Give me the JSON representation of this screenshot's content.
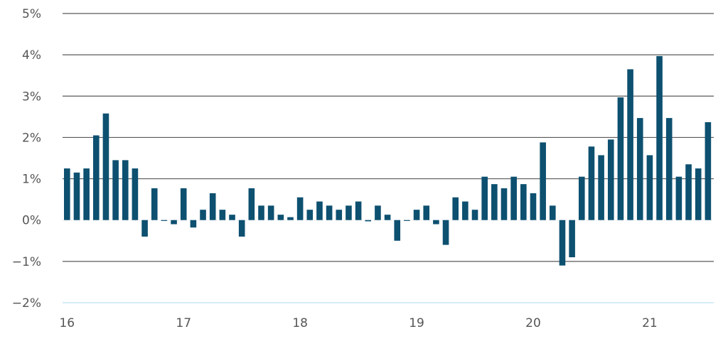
{
  "chart_data": {
    "type": "bar",
    "title": "",
    "xlabel": "",
    "ylabel": "",
    "ylim": [
      -2,
      5
    ],
    "y_ticks": [
      -2,
      -1,
      0,
      1,
      2,
      3,
      4,
      5
    ],
    "y_tick_labels": [
      "−2%",
      "−1%",
      "0%",
      "1%",
      "2%",
      "3%",
      "4%",
      "5%"
    ],
    "x_tick_labels": [
      "16",
      "17",
      "18",
      "19",
      "20",
      "21"
    ],
    "x_tick_positions": [
      0,
      12,
      24,
      36,
      48,
      60
    ],
    "grid": true,
    "colors": {
      "bar": "#0d5070",
      "grid": "#595959",
      "text": "#555555"
    },
    "values": [
      1.25,
      1.15,
      1.25,
      2.05,
      2.58,
      1.45,
      1.45,
      1.25,
      -0.4,
      0.77,
      -0.02,
      -0.1,
      0.77,
      -0.18,
      0.25,
      0.65,
      0.25,
      0.13,
      -0.4,
      0.77,
      0.35,
      0.35,
      0.13,
      0.07,
      0.55,
      0.25,
      0.45,
      0.35,
      0.25,
      0.35,
      0.45,
      -0.03,
      0.35,
      0.13,
      -0.5,
      -0.02,
      0.25,
      0.35,
      -0.1,
      -0.6,
      0.55,
      0.45,
      0.25,
      1.05,
      0.87,
      0.77,
      1.05,
      0.87,
      0.65,
      1.88,
      0.35,
      -1.1,
      -0.9,
      1.05,
      1.78,
      1.57,
      1.95,
      2.97,
      3.65,
      2.47,
      1.57,
      3.97,
      2.47,
      1.05,
      1.35,
      1.25,
      2.37
    ]
  }
}
